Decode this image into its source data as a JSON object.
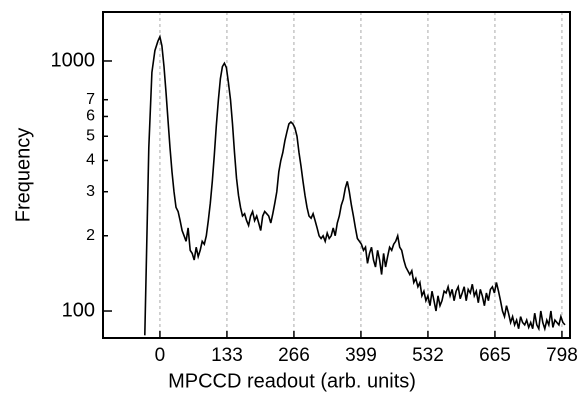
{
  "chart_data": {
    "type": "line",
    "log_y": true,
    "x_grid": true,
    "color": "#000000",
    "xlabel": "MPCCD readout (arb. units)",
    "ylabel": "Frequency",
    "xlim": [
      -113,
      814
    ],
    "ylim": [
      78,
      1570
    ],
    "xticks": [
      0,
      133,
      266,
      399,
      532,
      665,
      798
    ],
    "yticks": [
      100,
      {
        "value": 200,
        "label": "2"
      },
      {
        "value": 300,
        "label": "3"
      },
      {
        "value": 400,
        "label": "4"
      },
      {
        "value": 500,
        "label": "5"
      },
      {
        "value": 600,
        "label": "6"
      },
      {
        "value": 700,
        "label": "7"
      },
      1000
    ],
    "x": [
      -30,
      -22,
      -16,
      -10,
      -4,
      0,
      4,
      8,
      12,
      16,
      20,
      24,
      28,
      32,
      36,
      40,
      44,
      48,
      52,
      56,
      60,
      64,
      68,
      72,
      76,
      80,
      84,
      88,
      92,
      96,
      100,
      104,
      108,
      112,
      116,
      120,
      124,
      128,
      132,
      136,
      140,
      144,
      148,
      152,
      156,
      160,
      164,
      168,
      172,
      176,
      180,
      184,
      188,
      192,
      196,
      200,
      204,
      208,
      212,
      216,
      220,
      224,
      228,
      232,
      236,
      240,
      244,
      248,
      252,
      256,
      260,
      264,
      268,
      272,
      276,
      280,
      284,
      288,
      292,
      296,
      300,
      304,
      308,
      312,
      316,
      320,
      324,
      328,
      332,
      336,
      340,
      344,
      348,
      352,
      356,
      360,
      364,
      368,
      372,
      376,
      380,
      384,
      388,
      392,
      396,
      400,
      404,
      408,
      412,
      416,
      420,
      424,
      428,
      432,
      436,
      440,
      444,
      448,
      452,
      456,
      460,
      464,
      468,
      472,
      476,
      480,
      484,
      488,
      492,
      496,
      500,
      504,
      508,
      512,
      516,
      520,
      524,
      528,
      532,
      536,
      540,
      544,
      548,
      552,
      556,
      560,
      564,
      568,
      572,
      576,
      580,
      584,
      588,
      592,
      596,
      600,
      604,
      608,
      612,
      616,
      620,
      624,
      628,
      632,
      636,
      640,
      644,
      648,
      652,
      656,
      660,
      664,
      668,
      672,
      676,
      680,
      684,
      688,
      692,
      696,
      700,
      704,
      708,
      712,
      716,
      720,
      724,
      728,
      732,
      736,
      740,
      744,
      748,
      752,
      756,
      760,
      764,
      768,
      772,
      776,
      780,
      784,
      788,
      792,
      796,
      800,
      804
    ],
    "values": [
      80,
      450,
      900,
      1100,
      1200,
      1250,
      1150,
      950,
      750,
      580,
      450,
      360,
      300,
      260,
      250,
      230,
      210,
      200,
      190,
      215,
      175,
      170,
      160,
      180,
      165,
      175,
      190,
      185,
      200,
      230,
      270,
      330,
      420,
      550,
      700,
      850,
      950,
      980,
      940,
      820,
      700,
      560,
      430,
      340,
      290,
      260,
      240,
      245,
      230,
      220,
      240,
      250,
      230,
      240,
      225,
      210,
      240,
      250,
      245,
      240,
      225,
      245,
      270,
      300,
      360,
      400,
      430,
      480,
      520,
      560,
      570,
      560,
      540,
      500,
      430,
      380,
      330,
      290,
      260,
      240,
      235,
      245,
      230,
      215,
      200,
      195,
      200,
      190,
      205,
      195,
      200,
      215,
      200,
      225,
      240,
      265,
      280,
      310,
      330,
      300,
      265,
      240,
      215,
      195,
      190,
      185,
      175,
      180,
      155,
      170,
      180,
      160,
      150,
      175,
      160,
      140,
      170,
      150,
      165,
      180,
      175,
      185,
      190,
      200,
      180,
      175,
      160,
      150,
      145,
      140,
      145,
      130,
      135,
      125,
      130,
      115,
      120,
      110,
      115,
      105,
      120,
      110,
      100,
      115,
      105,
      110,
      120,
      118,
      125,
      115,
      122,
      110,
      120,
      125,
      112,
      118,
      125,
      110,
      122,
      118,
      128,
      115,
      120,
      108,
      122,
      115,
      105,
      118,
      110,
      122,
      125,
      118,
      130,
      120,
      110,
      100,
      95,
      105,
      98,
      90,
      95,
      88,
      92,
      85,
      95,
      90,
      88,
      92,
      86,
      90,
      85,
      98,
      88,
      85,
      100,
      90,
      85,
      92,
      88,
      100,
      86,
      92,
      90,
      88,
      95,
      90,
      88
    ]
  }
}
